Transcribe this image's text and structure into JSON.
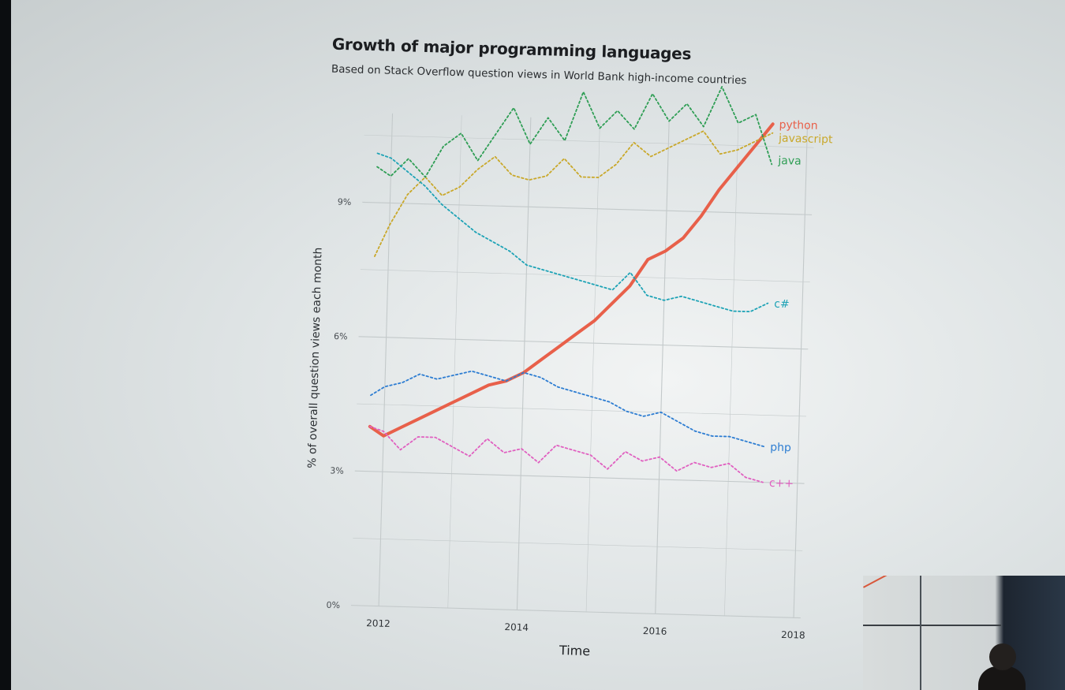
{
  "chart_data": {
    "type": "line",
    "title": "Growth of major programming languages",
    "subtitle": "Based on Stack Overflow question views in World Bank high-income countries",
    "xlabel": "Time",
    "ylabel": "% of overall question views each month",
    "xlim": [
      2011.6,
      2018.1
    ],
    "ylim": [
      0,
      11
    ],
    "x_ticks": [
      2012,
      2014,
      2016,
      2018
    ],
    "y_ticks": [
      0,
      3,
      6,
      9
    ],
    "y_tick_labels": [
      "0%",
      "3%",
      "6%",
      "9%"
    ],
    "grid": true,
    "legend": "direct labels at right end of lines",
    "series": [
      {
        "name": "python",
        "color": "#e8604a",
        "style": "solid",
        "x": [
          2011.8,
          2012.0,
          2012.25,
          2012.5,
          2012.75,
          2013.0,
          2013.25,
          2013.5,
          2013.75,
          2014.0,
          2014.25,
          2014.5,
          2014.75,
          2015.0,
          2015.25,
          2015.5,
          2015.75,
          2016.0,
          2016.25,
          2016.5,
          2016.75,
          2017.0,
          2017.25,
          2017.5
        ],
        "y": [
          4.0,
          3.8,
          4.0,
          4.2,
          4.4,
          4.6,
          4.8,
          5.0,
          5.1,
          5.3,
          5.6,
          5.9,
          6.2,
          6.5,
          6.9,
          7.3,
          7.9,
          8.1,
          8.4,
          8.9,
          9.5,
          10.0,
          10.5,
          11.0
        ],
        "label_y": 11.0
      },
      {
        "name": "javascript",
        "color": "#c9a82a",
        "style": "dotted",
        "x": [
          2011.8,
          2012.0,
          2012.25,
          2012.5,
          2012.75,
          2013.0,
          2013.25,
          2013.5,
          2013.75,
          2014.0,
          2014.25,
          2014.5,
          2014.75,
          2015.0,
          2015.25,
          2015.5,
          2015.75,
          2016.0,
          2016.25,
          2016.5,
          2016.75,
          2017.0,
          2017.25,
          2017.5
        ],
        "y": [
          7.8,
          8.5,
          9.2,
          9.6,
          9.2,
          9.4,
          9.8,
          10.1,
          9.7,
          9.6,
          9.7,
          10.1,
          9.7,
          9.7,
          10.0,
          10.5,
          10.2,
          10.4,
          10.6,
          10.8,
          10.3,
          10.4,
          10.6,
          10.8
        ],
        "label_y": 10.7
      },
      {
        "name": "java",
        "color": "#2f9e55",
        "style": "dotted",
        "x": [
          2011.8,
          2012.0,
          2012.25,
          2012.5,
          2012.75,
          2013.0,
          2013.25,
          2013.5,
          2013.75,
          2014.0,
          2014.25,
          2014.5,
          2014.75,
          2015.0,
          2015.25,
          2015.5,
          2015.75,
          2016.0,
          2016.25,
          2016.5,
          2016.75,
          2017.0,
          2017.25,
          2017.5
        ],
        "y": [
          9.8,
          9.6,
          10.0,
          9.6,
          10.3,
          10.6,
          10.0,
          10.6,
          11.2,
          10.4,
          11.0,
          10.5,
          11.6,
          10.8,
          11.2,
          10.8,
          11.6,
          11.0,
          11.4,
          10.9,
          11.8,
          11.0,
          11.2,
          10.1
        ],
        "label_y": 10.2
      },
      {
        "name": "c#",
        "color": "#1ea3b6",
        "style": "dotted",
        "x": [
          2011.8,
          2012.0,
          2012.25,
          2012.5,
          2012.75,
          2013.0,
          2013.25,
          2013.5,
          2013.75,
          2014.0,
          2014.25,
          2014.5,
          2014.75,
          2015.0,
          2015.25,
          2015.5,
          2015.75,
          2016.0,
          2016.25,
          2016.5,
          2016.75,
          2017.0,
          2017.25,
          2017.5
        ],
        "y": [
          10.1,
          10.0,
          9.7,
          9.4,
          9.0,
          8.7,
          8.4,
          8.2,
          8.0,
          7.7,
          7.6,
          7.5,
          7.4,
          7.3,
          7.2,
          7.6,
          7.1,
          7.0,
          7.1,
          7.0,
          6.9,
          6.8,
          6.8,
          7.0
        ],
        "label_y": 7.0
      },
      {
        "name": "php",
        "color": "#2d7dd2",
        "style": "dotted",
        "x": [
          2011.8,
          2012.0,
          2012.25,
          2012.5,
          2012.75,
          2013.0,
          2013.25,
          2013.5,
          2013.75,
          2014.0,
          2014.25,
          2014.5,
          2014.75,
          2015.0,
          2015.25,
          2015.5,
          2015.75,
          2016.0,
          2016.25,
          2016.5,
          2016.75,
          2017.0,
          2017.25,
          2017.5
        ],
        "y": [
          4.7,
          4.9,
          5.0,
          5.2,
          5.1,
          5.2,
          5.3,
          5.2,
          5.1,
          5.3,
          5.2,
          5.0,
          4.9,
          4.8,
          4.7,
          4.5,
          4.4,
          4.5,
          4.3,
          4.1,
          4.0,
          4.0,
          3.9,
          3.8
        ],
        "label_y": 3.8
      },
      {
        "name": "c++",
        "color": "#e060c0",
        "style": "dotted",
        "x": [
          2011.8,
          2012.0,
          2012.25,
          2012.5,
          2012.75,
          2013.0,
          2013.25,
          2013.5,
          2013.75,
          2014.0,
          2014.25,
          2014.5,
          2014.75,
          2015.0,
          2015.25,
          2015.5,
          2015.75,
          2016.0,
          2016.25,
          2016.5,
          2016.75,
          2017.0,
          2017.25,
          2017.5
        ],
        "y": [
          4.0,
          3.9,
          3.5,
          3.8,
          3.8,
          3.6,
          3.4,
          3.8,
          3.5,
          3.6,
          3.3,
          3.7,
          3.6,
          3.5,
          3.2,
          3.6,
          3.4,
          3.5,
          3.2,
          3.4,
          3.3,
          3.4,
          3.1,
          3.0
        ],
        "label_y": 3.0
      }
    ]
  }
}
